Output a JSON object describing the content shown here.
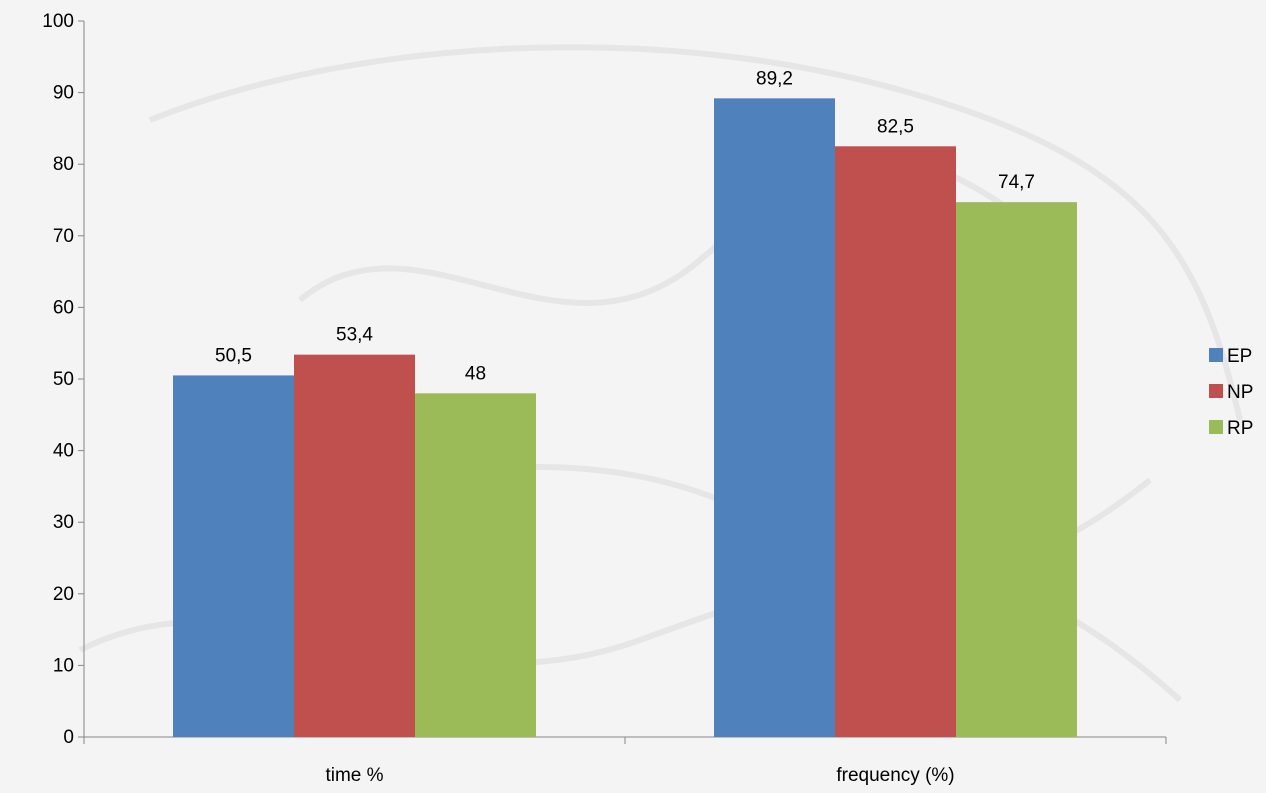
{
  "chart_data": {
    "type": "bar",
    "title": "",
    "xlabel": "",
    "ylabel": "",
    "categories": [
      "time %",
      "frequency (%)"
    ],
    "series": [
      {
        "name": "EP",
        "color": "#4F81BD",
        "values": [
          50.5,
          89.2
        ],
        "labels": [
          "50,5",
          "89,2"
        ]
      },
      {
        "name": "NP",
        "color": "#C0504D",
        "values": [
          53.4,
          82.5
        ],
        "labels": [
          "53,4",
          "82,5"
        ]
      },
      {
        "name": "RP",
        "color": "#9BBB59",
        "values": [
          48,
          74.7
        ],
        "labels": [
          "48",
          "74,7"
        ]
      }
    ],
    "ylim": [
      0,
      100
    ],
    "yticks": [
      0,
      10,
      20,
      30,
      40,
      50,
      60,
      70,
      80,
      90,
      100
    ],
    "grid": false,
    "legend_position": "right",
    "data_labels": true
  }
}
